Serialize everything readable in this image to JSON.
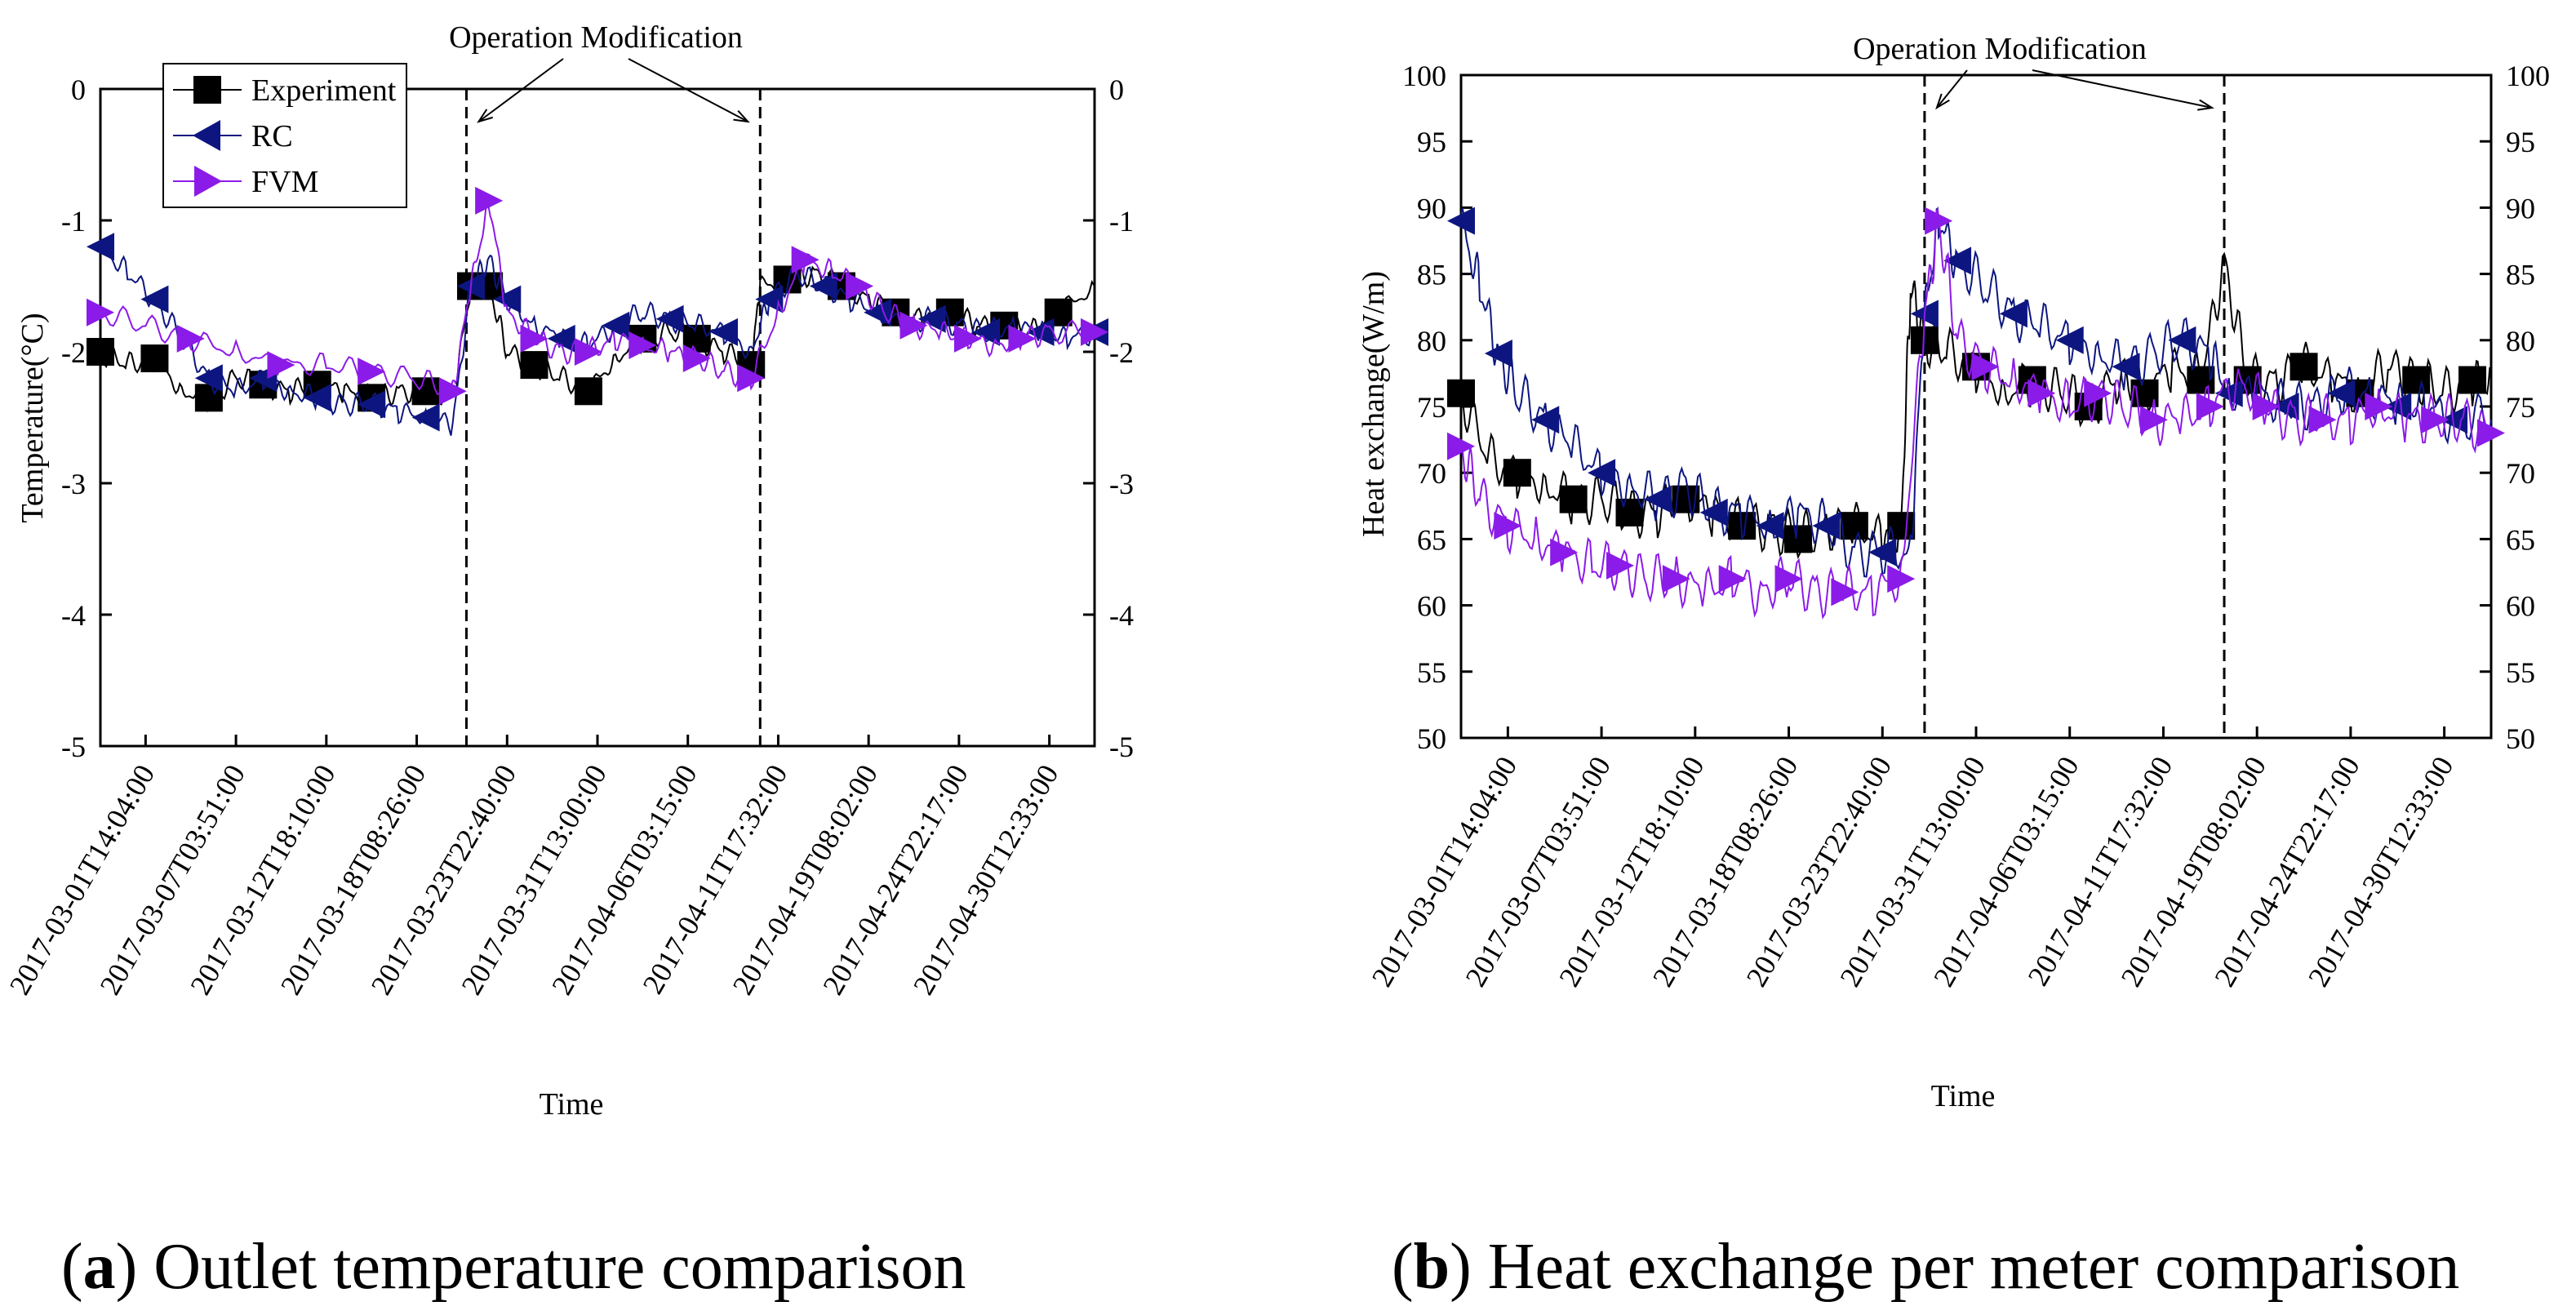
{
  "chart_data": [
    {
      "id": "a",
      "type": "line",
      "xlabel": "Time",
      "ylabel": "Temperature(°C)",
      "ylim": [
        -5,
        0
      ],
      "yticks": [
        0,
        -1,
        -2,
        -3,
        -4,
        -5
      ],
      "categories": [
        "2017-03-01T14:04:00",
        "2017-03-07T03:51:00",
        "2017-03-12T18:10:00",
        "2017-03-18T08:26:00",
        "2017-03-23T22:40:00",
        "2017-03-31T13:00:00",
        "2017-04-06T03:15:00",
        "2017-04-11T17:32:00",
        "2017-04-19T08:02:00",
        "2017-04-24T22:17:00",
        "2017-04-30T12:33:00"
      ],
      "legend": [
        "Experiment",
        "RC",
        "FVM"
      ],
      "legend_position": "top-left",
      "annotation": "Operation Modification",
      "modification_x": [
        4.05,
        7.3
      ],
      "series": [
        {
          "name": "Experiment",
          "color": "#000000",
          "marker": "square",
          "x": [
            0,
            0.3,
            0.6,
            0.9,
            1.2,
            1.5,
            1.8,
            2.1,
            2.4,
            2.7,
            3.0,
            3.3,
            3.6,
            3.9,
            4.1,
            4.2,
            4.3,
            4.5,
            4.8,
            5.1,
            5.4,
            5.7,
            6.0,
            6.3,
            6.6,
            6.9,
            7.2,
            7.3,
            7.6,
            7.9,
            8.2,
            8.5,
            8.8,
            9.1,
            9.4,
            9.7,
            10.0,
            10.3,
            10.6,
            11.0
          ],
          "values": [
            -2.0,
            -2.1,
            -2.05,
            -2.3,
            -2.35,
            -2.2,
            -2.25,
            -2.3,
            -2.25,
            -2.3,
            -2.35,
            -2.3,
            -2.3,
            -2.35,
            -1.5,
            -1.5,
            -1.5,
            -2.0,
            -2.1,
            -2.2,
            -2.3,
            -2.05,
            -1.9,
            -1.85,
            -1.9,
            -2.0,
            -2.1,
            -1.5,
            -1.45,
            -1.4,
            -1.5,
            -1.6,
            -1.7,
            -1.75,
            -1.7,
            -1.8,
            -1.8,
            -1.85,
            -1.7,
            -1.5
          ]
        },
        {
          "name": "RC",
          "color": "#0d1680",
          "marker": "triangle-left",
          "x": [
            0,
            0.3,
            0.6,
            0.9,
            1.2,
            1.5,
            1.8,
            2.1,
            2.4,
            2.7,
            3.0,
            3.3,
            3.6,
            3.9,
            4.1,
            4.3,
            4.5,
            4.8,
            5.1,
            5.4,
            5.7,
            6.0,
            6.3,
            6.6,
            6.9,
            7.2,
            7.4,
            7.7,
            8.0,
            8.3,
            8.6,
            8.9,
            9.2,
            9.5,
            9.8,
            10.1,
            10.4,
            10.7,
            11.0
          ],
          "values": [
            -1.2,
            -1.4,
            -1.6,
            -1.9,
            -2.2,
            -2.3,
            -2.2,
            -2.3,
            -2.35,
            -2.4,
            -2.4,
            -2.45,
            -2.5,
            -2.55,
            -1.5,
            -1.3,
            -1.6,
            -1.8,
            -1.9,
            -1.95,
            -1.8,
            -1.7,
            -1.75,
            -1.8,
            -1.85,
            -2.0,
            -1.6,
            -1.4,
            -1.5,
            -1.6,
            -1.7,
            -1.8,
            -1.75,
            -1.8,
            -1.85,
            -1.8,
            -1.85,
            -1.9,
            -1.85
          ]
        },
        {
          "name": "FVM",
          "color": "#8b1be8",
          "marker": "triangle-right",
          "x": [
            0,
            0.5,
            1.0,
            1.5,
            2.0,
            2.5,
            3.0,
            3.5,
            3.9,
            4.1,
            4.3,
            4.5,
            4.8,
            5.1,
            5.4,
            5.7,
            6.0,
            6.3,
            6.6,
            6.9,
            7.2,
            7.5,
            7.8,
            8.1,
            8.4,
            8.7,
            9.0,
            9.3,
            9.6,
            9.9,
            10.2,
            10.5,
            11.0
          ],
          "values": [
            -1.7,
            -1.8,
            -1.9,
            -2.0,
            -2.1,
            -2.1,
            -2.15,
            -2.2,
            -2.3,
            -1.5,
            -0.85,
            -1.7,
            -1.9,
            -2.0,
            -2.0,
            -1.9,
            -1.95,
            -2.0,
            -2.05,
            -2.15,
            -2.2,
            -1.7,
            -1.3,
            -1.4,
            -1.5,
            -1.7,
            -1.8,
            -1.85,
            -1.9,
            -1.95,
            -1.9,
            -1.85,
            -1.85
          ]
        }
      ]
    },
    {
      "id": "b",
      "type": "line",
      "xlabel": "Time",
      "ylabel": "Heat exchange(W/m)",
      "ylim": [
        50,
        100
      ],
      "yticks": [
        100,
        95,
        90,
        85,
        80,
        75,
        70,
        65,
        60,
        55,
        50
      ],
      "categories": [
        "2017-03-01T14:04:00",
        "2017-03-07T03:51:00",
        "2017-03-12T18:10:00",
        "2017-03-18T08:26:00",
        "2017-03-23T22:40:00",
        "2017-03-31T13:00:00",
        "2017-04-06T03:15:00",
        "2017-04-11T17:32:00",
        "2017-04-19T08:02:00",
        "2017-04-24T22:17:00",
        "2017-04-30T12:33:00"
      ],
      "annotation": "Operation Modification",
      "modification_x": [
        4.95,
        8.15
      ],
      "series": [
        {
          "name": "Experiment",
          "color": "#000000",
          "marker": "square",
          "x": [
            0,
            0.3,
            0.6,
            0.9,
            1.2,
            1.5,
            1.8,
            2.1,
            2.4,
            2.7,
            3.0,
            3.3,
            3.6,
            3.9,
            4.2,
            4.5,
            4.7,
            4.8,
            4.95,
            5.2,
            5.5,
            5.8,
            6.1,
            6.4,
            6.7,
            7.0,
            7.3,
            7.6,
            7.9,
            8.15,
            8.4,
            8.7,
            9.0,
            9.3,
            9.6,
            9.9,
            10.2,
            10.5,
            10.8,
            11.0
          ],
          "values": [
            76,
            71,
            70,
            69,
            68,
            68,
            67,
            67,
            68,
            67,
            66,
            66,
            65,
            66,
            66,
            65,
            66,
            84,
            80,
            79,
            78,
            76,
            77,
            76,
            75,
            77,
            76,
            78,
            77,
            86,
            77,
            77,
            78,
            77,
            76,
            78,
            77,
            76,
            77,
            77
          ]
        },
        {
          "name": "RC",
          "color": "#0d1680",
          "marker": "triangle-left",
          "x": [
            0,
            0.2,
            0.4,
            0.6,
            0.9,
            1.2,
            1.5,
            1.8,
            2.1,
            2.4,
            2.7,
            3.0,
            3.3,
            3.6,
            3.9,
            4.2,
            4.5,
            4.8,
            4.95,
            5.1,
            5.3,
            5.6,
            5.9,
            6.2,
            6.5,
            6.8,
            7.1,
            7.4,
            7.7,
            8.0,
            8.2,
            8.5,
            8.8,
            9.1,
            9.4,
            9.7,
            10.0,
            10.3,
            10.6,
            11.0
          ],
          "values": [
            89,
            84,
            79,
            76,
            74,
            72,
            70,
            69,
            68,
            69,
            67,
            67,
            66,
            67,
            66,
            64,
            64,
            64,
            82,
            89,
            86,
            84,
            82,
            81,
            80,
            79,
            78,
            79,
            80,
            79,
            76,
            76,
            75,
            75,
            76,
            76,
            75,
            75,
            74,
            74
          ]
        },
        {
          "name": "FVM",
          "color": "#8b1be8",
          "marker": "triangle-right",
          "x": [
            0,
            0.2,
            0.5,
            0.8,
            1.1,
            1.4,
            1.7,
            2.0,
            2.3,
            2.6,
            2.9,
            3.2,
            3.5,
            3.8,
            4.1,
            4.4,
            4.7,
            4.95,
            5.1,
            5.3,
            5.6,
            5.9,
            6.2,
            6.5,
            6.8,
            7.1,
            7.4,
            7.7,
            8.0,
            8.3,
            8.6,
            8.9,
            9.2,
            9.5,
            9.8,
            10.1,
            10.4,
            10.7,
            11.0
          ],
          "values": [
            72,
            68,
            66,
            65,
            64,
            63,
            63,
            62,
            62,
            61,
            62,
            61,
            62,
            61,
            61,
            61,
            62,
            82,
            89,
            80,
            78,
            77,
            76,
            75,
            76,
            75,
            74,
            74,
            75,
            77,
            75,
            74,
            74,
            74,
            75,
            74,
            74,
            74,
            73
          ]
        }
      ]
    }
  ],
  "captions": [
    {
      "letter": "a",
      "text": " Outlet temperature comparison"
    },
    {
      "letter": "b",
      "text": " Heat exchange per meter comparison"
    }
  ]
}
